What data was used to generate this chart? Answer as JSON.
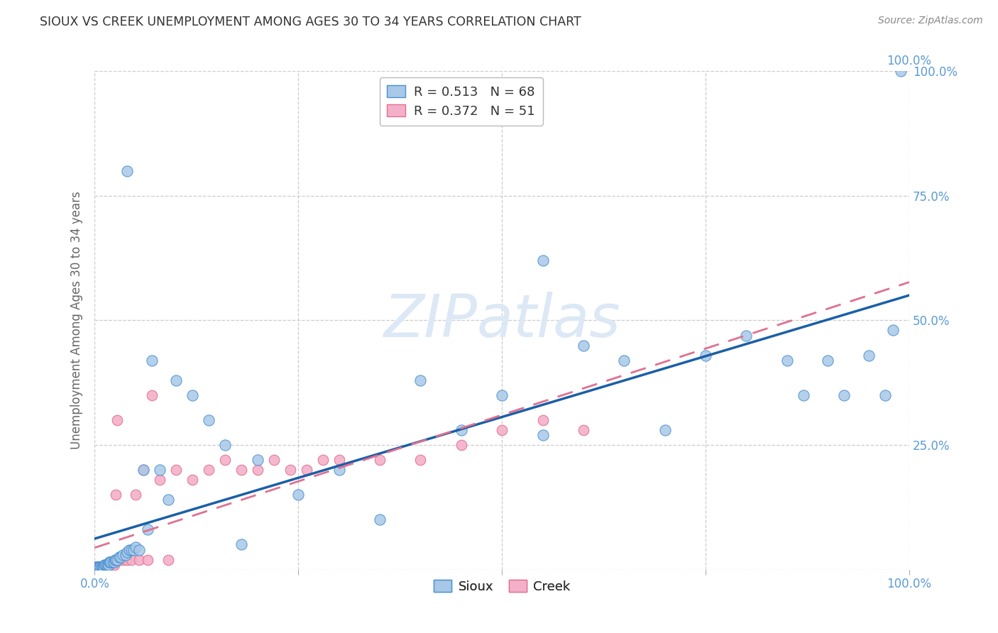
{
  "title": "SIOUX VS CREEK UNEMPLOYMENT AMONG AGES 30 TO 34 YEARS CORRELATION CHART",
  "source": "Source: ZipAtlas.com",
  "ylabel": "Unemployment Among Ages 30 to 34 years",
  "xlim": [
    0,
    1.0
  ],
  "ylim": [
    0,
    1.0
  ],
  "legend_entries": [
    {
      "label": "Sioux",
      "R": "0.513",
      "N": "68",
      "color": "#a8c8e8"
    },
    {
      "label": "Creek",
      "R": "0.372",
      "N": "51",
      "color": "#f4a0b8"
    }
  ],
  "sioux_x": [
    0.001,
    0.002,
    0.003,
    0.004,
    0.005,
    0.006,
    0.007,
    0.008,
    0.009,
    0.01,
    0.011,
    0.012,
    0.013,
    0.014,
    0.015,
    0.016,
    0.017,
    0.018,
    0.019,
    0.02,
    0.022,
    0.024,
    0.025,
    0.026,
    0.028,
    0.03,
    0.032,
    0.035,
    0.038,
    0.04,
    0.042,
    0.045,
    0.048,
    0.05,
    0.055,
    0.06,
    0.065,
    0.07,
    0.08,
    0.09,
    0.1,
    0.12,
    0.14,
    0.16,
    0.18,
    0.2,
    0.25,
    0.3,
    0.35,
    0.4,
    0.45,
    0.5,
    0.55,
    0.6,
    0.65,
    0.7,
    0.75,
    0.8,
    0.85,
    0.87,
    0.9,
    0.92,
    0.95,
    0.97,
    0.98,
    0.99,
    0.04,
    0.55
  ],
  "sioux_y": [
    0.005,
    0.005,
    0.005,
    0.005,
    0.005,
    0.005,
    0.005,
    0.005,
    0.005,
    0.005,
    0.005,
    0.01,
    0.01,
    0.01,
    0.01,
    0.01,
    0.01,
    0.015,
    0.015,
    0.015,
    0.015,
    0.015,
    0.02,
    0.02,
    0.02,
    0.025,
    0.025,
    0.03,
    0.03,
    0.035,
    0.04,
    0.04,
    0.04,
    0.045,
    0.04,
    0.2,
    0.08,
    0.42,
    0.2,
    0.14,
    0.38,
    0.35,
    0.3,
    0.25,
    0.05,
    0.22,
    0.15,
    0.2,
    0.1,
    0.38,
    0.28,
    0.35,
    0.27,
    0.45,
    0.42,
    0.28,
    0.43,
    0.47,
    0.42,
    0.35,
    0.42,
    0.35,
    0.43,
    0.35,
    0.48,
    1.0,
    0.8,
    0.62
  ],
  "creek_x": [
    0.001,
    0.002,
    0.003,
    0.004,
    0.005,
    0.006,
    0.007,
    0.008,
    0.009,
    0.01,
    0.011,
    0.012,
    0.013,
    0.014,
    0.015,
    0.016,
    0.017,
    0.018,
    0.02,
    0.022,
    0.024,
    0.026,
    0.028,
    0.03,
    0.035,
    0.04,
    0.045,
    0.05,
    0.055,
    0.06,
    0.065,
    0.07,
    0.08,
    0.09,
    0.1,
    0.12,
    0.14,
    0.16,
    0.18,
    0.2,
    0.22,
    0.24,
    0.26,
    0.28,
    0.3,
    0.35,
    0.4,
    0.45,
    0.5,
    0.55,
    0.6
  ],
  "creek_y": [
    0.005,
    0.005,
    0.005,
    0.005,
    0.005,
    0.005,
    0.005,
    0.005,
    0.005,
    0.005,
    0.005,
    0.005,
    0.005,
    0.005,
    0.005,
    0.005,
    0.01,
    0.01,
    0.01,
    0.01,
    0.01,
    0.15,
    0.3,
    0.02,
    0.02,
    0.02,
    0.02,
    0.15,
    0.02,
    0.2,
    0.02,
    0.35,
    0.18,
    0.02,
    0.2,
    0.18,
    0.2,
    0.22,
    0.2,
    0.2,
    0.22,
    0.2,
    0.2,
    0.22,
    0.22,
    0.22,
    0.22,
    0.25,
    0.28,
    0.3,
    0.28
  ],
  "background_color": "#ffffff",
  "grid_color": "#cccccc",
  "sioux_face_color": "#a8c8e8",
  "sioux_edge_color": "#4a90d0",
  "sioux_line_color": "#1a5fa8",
  "creek_face_color": "#f4b0c8",
  "creek_edge_color": "#e07090",
  "creek_line_color": "#e07090",
  "title_color": "#333333",
  "axis_label_color": "#666666",
  "tick_label_color": "#5b9bd5",
  "watermark_color": "#dce8f5",
  "watermark_text": "ZIPatlas"
}
